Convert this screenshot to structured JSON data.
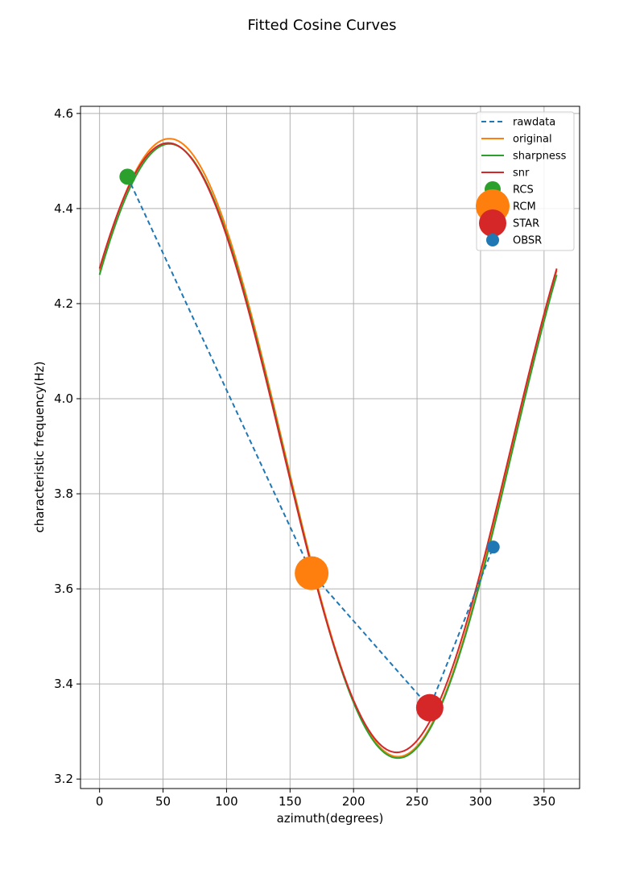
{
  "chart_data": {
    "type": "line",
    "title": "Fitted Cosine Curves",
    "xlabel": "azimuth(degrees)",
    "ylabel": "characteristic frequency(Hz)",
    "xlim": [
      -15,
      378
    ],
    "ylim": [
      3.18,
      4.615
    ],
    "x_ticks": [
      0,
      50,
      100,
      150,
      200,
      250,
      300,
      350
    ],
    "y_ticks": [
      3.2,
      3.4,
      3.6,
      3.8,
      4.0,
      4.2,
      4.4,
      4.6
    ],
    "x_tick_labels": [
      "0",
      "50",
      "100",
      "150",
      "200",
      "250",
      "300",
      "350"
    ],
    "y_tick_labels": [
      "3.2",
      "3.4",
      "3.6",
      "3.8",
      "4.0",
      "4.2",
      "4.4",
      "4.6"
    ],
    "grid": true,
    "legend_position": "top-right",
    "raw_series": {
      "name": "rawdata",
      "color": "#1f77b4",
      "style": "dashed",
      "x": [
        22,
        167,
        260,
        310
      ],
      "y": [
        4.467,
        3.633,
        3.35,
        3.688
      ]
    },
    "fitted_curves": [
      {
        "name": "original",
        "color": "#ff7f0e",
        "offset": 3.897,
        "amplitude": 0.65,
        "phase_deg": 55,
        "x_range": [
          0,
          360
        ]
      },
      {
        "name": "sharpness",
        "color": "#2ca02c",
        "offset": 3.89,
        "amplitude": 0.646,
        "phase_deg": 55,
        "x_range": [
          0,
          360
        ]
      },
      {
        "name": "snr",
        "color": "#d62728",
        "offset": 3.897,
        "amplitude": 0.641,
        "phase_deg": 54,
        "x_range": [
          0,
          360
        ]
      }
    ],
    "points": [
      {
        "name": "RCS",
        "color": "#2ca02c",
        "x": 22,
        "y": 4.467,
        "size": "small"
      },
      {
        "name": "RCM",
        "color": "#ff7f0e",
        "x": 167,
        "y": 3.633,
        "size": "large"
      },
      {
        "name": "STAR",
        "color": "#d62728",
        "x": 260,
        "y": 3.35,
        "size": "medium"
      },
      {
        "name": "OBSR",
        "color": "#1f77b4",
        "x": 310,
        "y": 3.688,
        "size": "tiny"
      }
    ],
    "legend_entries": [
      "rawdata",
      "original",
      "sharpness",
      "snr",
      "RCS",
      "RCM",
      "STAR",
      "OBSR"
    ]
  }
}
